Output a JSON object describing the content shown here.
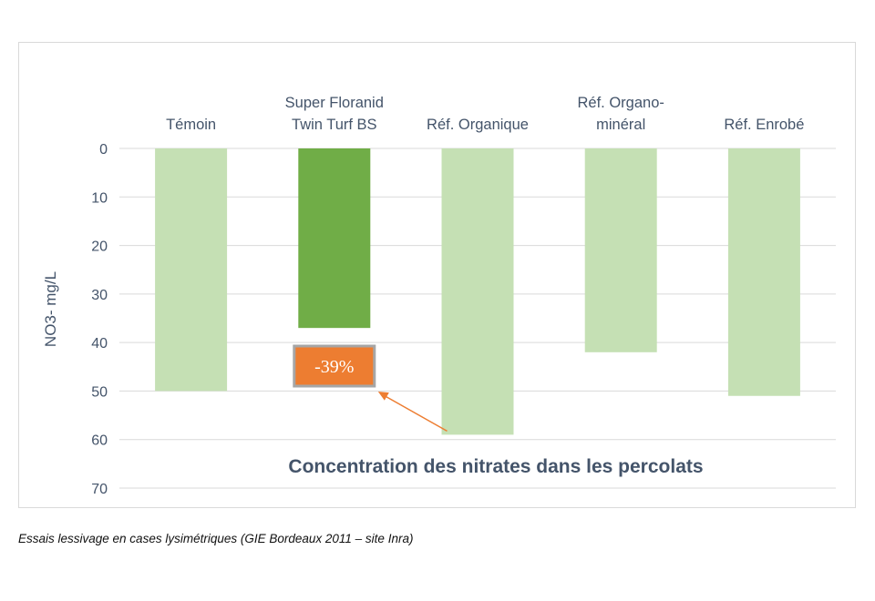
{
  "chart_data": {
    "type": "bar",
    "orientation": "inverted-vertical",
    "title": "Concentration des nitrates dans les percolats",
    "ylabel": "NO3- mg/L",
    "xlabel": "",
    "ylim": [
      0,
      70
    ],
    "yticks": [
      0,
      10,
      20,
      30,
      40,
      50,
      60,
      70
    ],
    "grid": true,
    "categories": [
      [
        "Témoin"
      ],
      [
        "Super Floranid",
        "Twin Turf BS"
      ],
      [
        "Réf. Organique"
      ],
      [
        "Réf. Organo-",
        "minéral"
      ],
      [
        "Réf. Enrobé"
      ]
    ],
    "values": [
      50,
      37,
      59,
      42,
      51
    ],
    "highlight_index": 1,
    "annotation": {
      "text": "-39%",
      "target_category_index": 2
    }
  },
  "colors": {
    "bar": "#c5e0b4",
    "highlight_bar": "#70ad47",
    "grid": "#d9d9d9",
    "axis_text": "#44546a",
    "annotation_box": "#ed7d31",
    "annotation_border": "#a6a6a6",
    "annotation_arrow": "#ed7d31"
  },
  "caption": "Essais lessivage en cases lysimétriques (GIE Bordeaux 2011 – site Inra)"
}
